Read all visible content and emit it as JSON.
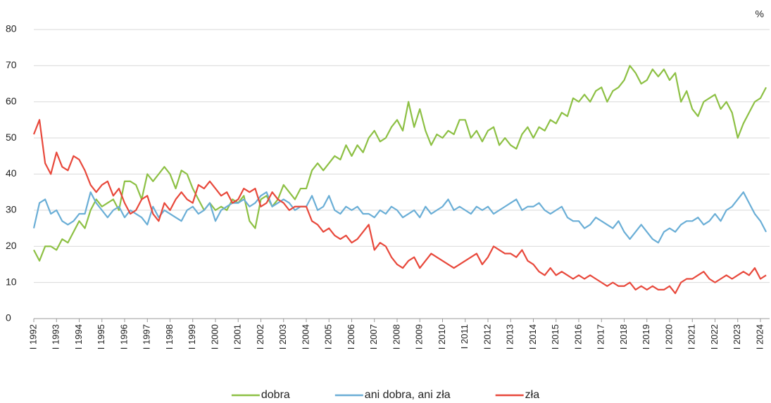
{
  "chart_data": {
    "type": "line",
    "unit": "%",
    "categories": [
      "I 1992",
      null,
      null,
      null,
      "I 1993",
      null,
      null,
      null,
      "I 1994",
      null,
      null,
      null,
      "I 1995",
      null,
      null,
      null,
      "I 1996",
      null,
      null,
      null,
      "I 1997",
      null,
      null,
      null,
      "I 1998",
      null,
      null,
      null,
      "I 1999",
      null,
      null,
      null,
      "I 2000",
      null,
      null,
      null,
      "I 2001",
      null,
      null,
      null,
      "I 2002",
      null,
      null,
      null,
      "I 2003",
      null,
      null,
      null,
      "I 2004",
      null,
      null,
      null,
      "I 2005",
      null,
      null,
      null,
      "I 2006",
      null,
      null,
      null,
      "I 2007",
      null,
      null,
      null,
      "I 2008",
      null,
      null,
      null,
      "I 2009",
      null,
      null,
      null,
      "I 2010",
      null,
      null,
      null,
      "I 2011",
      null,
      null,
      null,
      "I 2012",
      null,
      null,
      null,
      "I 2013",
      null,
      null,
      null,
      "I 2014",
      null,
      null,
      null,
      "I 2015",
      null,
      null,
      null,
      "I 2016",
      null,
      null,
      null,
      "I 2017",
      null,
      null,
      null,
      "I 2018",
      null,
      null,
      null,
      "I 2019",
      null,
      null,
      null,
      "I 2020",
      null,
      null,
      null,
      "I 2021",
      null,
      null,
      null,
      "I 2022",
      null,
      null,
      null,
      "I 2023",
      null,
      null,
      null,
      "I 2024",
      null
    ],
    "series": [
      {
        "name": "dobra",
        "color": "#8dc044",
        "values": [
          19,
          16,
          20,
          20,
          19,
          22,
          21,
          24,
          27,
          25,
          30,
          33,
          31,
          32,
          33,
          30,
          38,
          38,
          37,
          33,
          40,
          38,
          40,
          42,
          40,
          36,
          41,
          40,
          36,
          33,
          30,
          32,
          30,
          31,
          30,
          33,
          32,
          34,
          27,
          25,
          33,
          34,
          31,
          33,
          37,
          35,
          33,
          36,
          36,
          41,
          43,
          41,
          43,
          45,
          44,
          48,
          45,
          48,
          46,
          50,
          52,
          49,
          50,
          53,
          55,
          52,
          60,
          53,
          58,
          52,
          48,
          51,
          50,
          52,
          51,
          55,
          55,
          50,
          52,
          49,
          52,
          53,
          48,
          50,
          48,
          47,
          51,
          53,
          50,
          53,
          52,
          55,
          54,
          57,
          56,
          61,
          60,
          62,
          60,
          63,
          64,
          60,
          63,
          64,
          66,
          70,
          68,
          65,
          66,
          69,
          67,
          69,
          66,
          68,
          60,
          63,
          58,
          56,
          60,
          61,
          62,
          58,
          60,
          57,
          50,
          54,
          57,
          60,
          61,
          64
        ]
      },
      {
        "name": "ani dobra, ani zła",
        "color": "#6aaed6",
        "values": [
          25,
          32,
          33,
          29,
          30,
          27,
          26,
          27,
          29,
          29,
          35,
          32,
          30,
          28,
          30,
          31,
          28,
          30,
          29,
          28,
          26,
          31,
          28,
          30,
          29,
          28,
          27,
          30,
          31,
          29,
          30,
          32,
          27,
          30,
          31,
          32,
          32,
          33,
          31,
          32,
          34,
          35,
          31,
          32,
          33,
          32,
          30,
          31,
          31,
          34,
          30,
          31,
          34,
          30,
          29,
          31,
          30,
          31,
          29,
          29,
          28,
          30,
          29,
          31,
          30,
          28,
          29,
          30,
          28,
          31,
          29,
          30,
          31,
          33,
          30,
          31,
          30,
          29,
          31,
          30,
          31,
          29,
          30,
          31,
          32,
          33,
          30,
          31,
          31,
          32,
          30,
          29,
          30,
          31,
          28,
          27,
          27,
          25,
          26,
          28,
          27,
          26,
          25,
          27,
          24,
          22,
          24,
          26,
          24,
          22,
          21,
          24,
          25,
          24,
          26,
          27,
          27,
          28,
          26,
          27,
          29,
          27,
          30,
          31,
          33,
          35,
          32,
          29,
          27,
          24
        ]
      },
      {
        "name": "zła",
        "color": "#e8483b",
        "values": [
          51,
          55,
          43,
          40,
          46,
          42,
          41,
          45,
          44,
          41,
          37,
          35,
          37,
          38,
          34,
          36,
          32,
          29,
          30,
          33,
          34,
          29,
          27,
          32,
          30,
          33,
          35,
          33,
          32,
          37,
          36,
          38,
          36,
          34,
          35,
          32,
          33,
          36,
          35,
          36,
          31,
          32,
          35,
          33,
          32,
          30,
          31,
          31,
          31,
          27,
          26,
          24,
          25,
          23,
          22,
          23,
          21,
          22,
          24,
          26,
          19,
          21,
          20,
          17,
          15,
          14,
          16,
          17,
          14,
          16,
          18,
          17,
          16,
          15,
          14,
          15,
          16,
          17,
          18,
          15,
          17,
          20,
          19,
          18,
          18,
          17,
          19,
          16,
          15,
          13,
          12,
          14,
          12,
          13,
          12,
          11,
          12,
          11,
          12,
          11,
          10,
          9,
          10,
          9,
          9,
          10,
          8,
          9,
          8,
          9,
          8,
          8,
          9,
          7,
          10,
          11,
          11,
          12,
          13,
          11,
          10,
          11,
          12,
          11,
          12,
          13,
          12,
          14,
          11,
          12
        ]
      }
    ],
    "ylim": [
      0,
      80
    ],
    "yticks": [
      0,
      10,
      20,
      30,
      40,
      50,
      60,
      70,
      80
    ],
    "grid": true
  }
}
